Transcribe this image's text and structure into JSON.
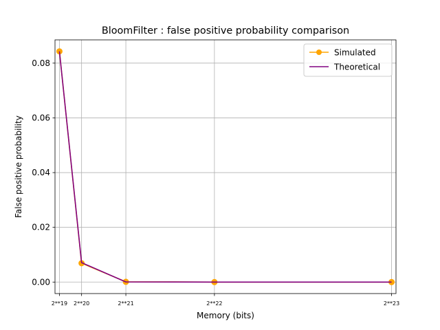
{
  "chart_data": {
    "type": "line",
    "title": "BloomFilter : false positive probability comparison",
    "xlabel": "Memory (bits)",
    "ylabel": "False positive probability",
    "x": [
      524288,
      1048576,
      2097152,
      4194304,
      8388608
    ],
    "x_tick_labels": [
      "2**19",
      "2**20",
      "2**21",
      "2**22",
      "2**23"
    ],
    "y_ticks": [
      0.0,
      0.02,
      0.04,
      0.06,
      0.08
    ],
    "y_tick_labels": [
      "0.00",
      "0.02",
      "0.04",
      "0.06",
      "0.08"
    ],
    "ylim": [
      -0.0042,
      0.0885
    ],
    "grid": true,
    "legend_position": "upper right",
    "series": [
      {
        "name": "Simulated",
        "values": [
          0.0843,
          0.0069,
          0.0001,
          0.0,
          0.0
        ],
        "color": "#ffa500",
        "marker": "circle"
      },
      {
        "name": "Theoretical",
        "values": [
          0.0843,
          0.0071,
          5e-05,
          0.0,
          0.0
        ],
        "color": "#800080",
        "marker": "none"
      }
    ]
  }
}
